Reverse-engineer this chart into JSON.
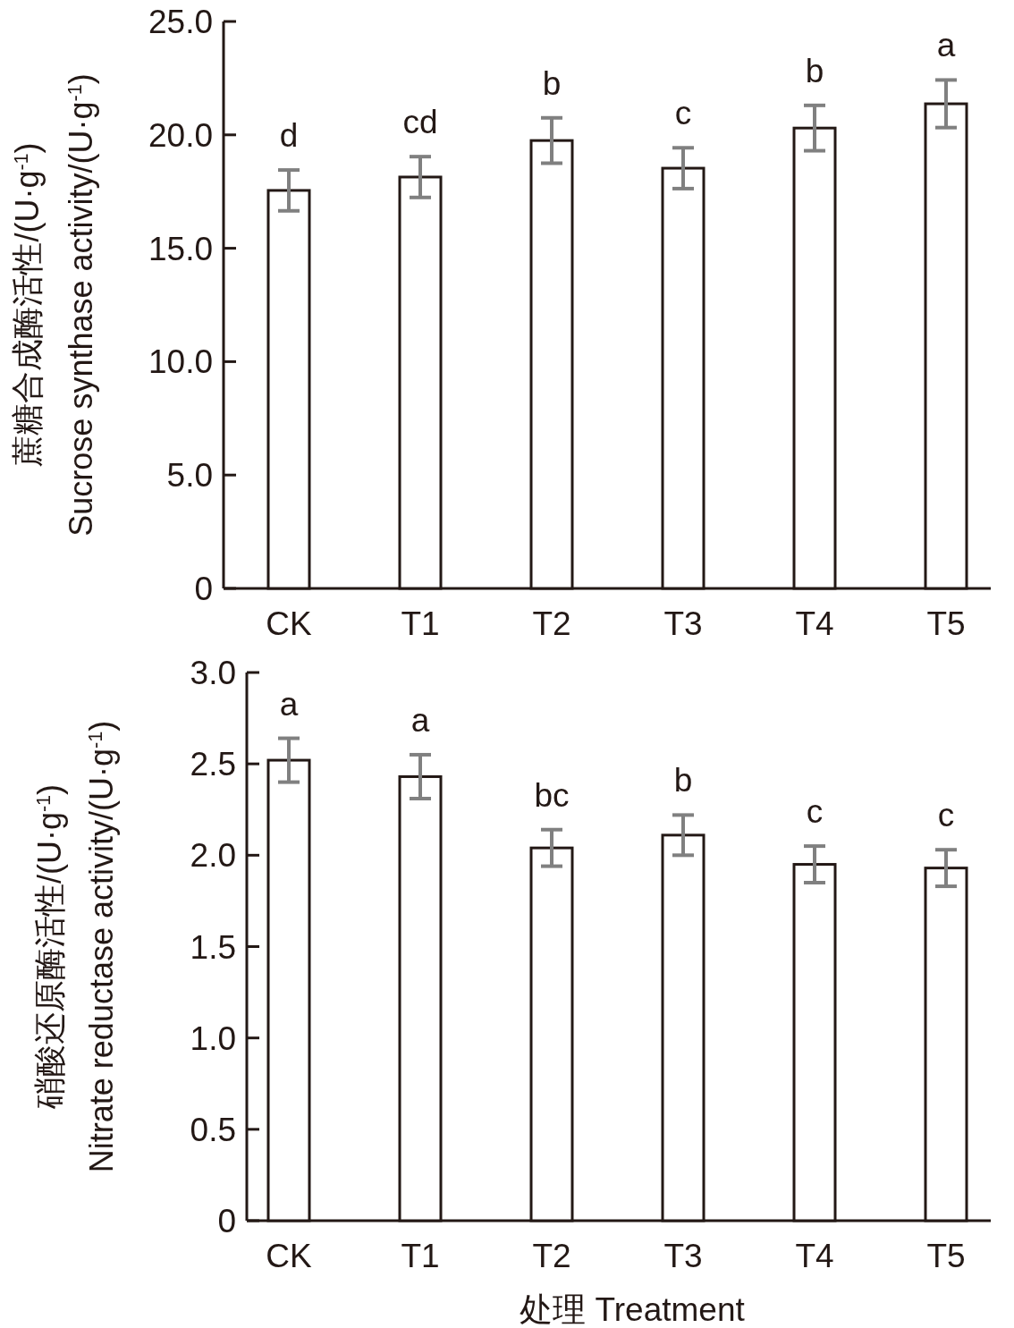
{
  "chart_data": [
    {
      "type": "bar",
      "ylabel": "蔗糖合成酶活性/(U·g$^{-1}$)\nSucrose synthase activity/(U·g$^{-1}$)",
      "categories": [
        "CK",
        "T1",
        "T2",
        "T3",
        "T4",
        "T5"
      ],
      "series": [
        {
          "color": "#ffffff",
          "values": [
            17.55,
            18.14,
            19.75,
            18.53,
            20.3,
            21.37
          ],
          "errors": [
            0.9,
            0.9,
            1.0,
            0.9,
            1.0,
            1.05
          ]
        }
      ],
      "ylim": [
        0,
        25
      ],
      "yticks": [
        0,
        {
          "value": 5,
          "label": "5.0"
        },
        {
          "value": 10,
          "label": "10.0"
        },
        {
          "value": 15,
          "label": "15.0"
        },
        {
          "value": 20,
          "label": "20.0"
        },
        {
          "value": 25,
          "label": "25.0"
        }
      ],
      "annotations": [
        "d",
        "cd",
        "b",
        "c",
        "b",
        "a"
      ]
    },
    {
      "type": "bar",
      "xlabel": "处理 Treatment",
      "ylabel": "硝酸还原酶活性/(U·g$^{-1}$)\nNitrate reductase activity/(U·g$^{-1}$)",
      "categories": [
        "CK",
        "T1",
        "T2",
        "T3",
        "T4",
        "T5"
      ],
      "series": [
        {
          "color": "#ffffff",
          "values": [
            2.52,
            2.43,
            2.04,
            2.11,
            1.95,
            1.93
          ],
          "errors": [
            0.12,
            0.12,
            0.1,
            0.11,
            0.1,
            0.1
          ]
        }
      ],
      "ylim": [
        0,
        3
      ],
      "yticks": [
        0,
        {
          "value": 0.5,
          "label": "0.5"
        },
        {
          "value": 1,
          "label": "1.0"
        },
        {
          "value": 1.5,
          "label": "1.5"
        },
        {
          "value": 2,
          "label": "2.0"
        },
        {
          "value": 2.5,
          "label": "2.5"
        },
        {
          "value": 3,
          "label": "3.0"
        }
      ],
      "annotations": [
        "a",
        "a",
        "bc",
        "b",
        "c",
        "c"
      ]
    }
  ]
}
